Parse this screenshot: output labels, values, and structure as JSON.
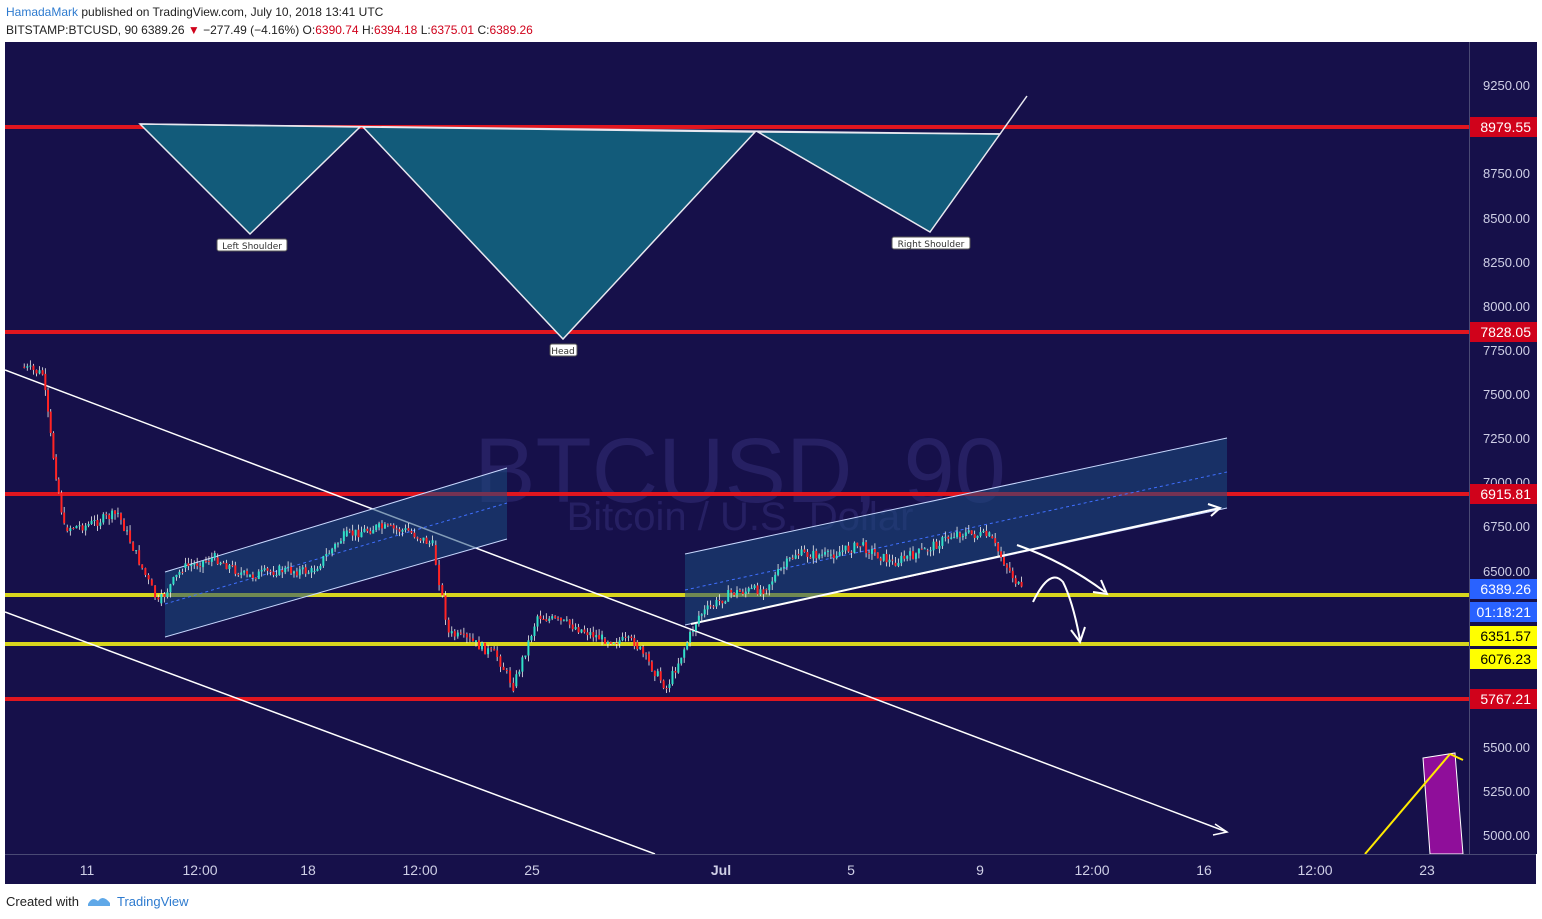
{
  "header": {
    "author": "HamadaMark",
    "published_text": " published on TradingView.com, July 10, 2018 13:41 UTC",
    "symbol_interval": "BITSTAMP:BTCUSD, 90",
    "last_price": "6389.26",
    "change": "−277.49 (−4.16%)",
    "open_label": "O:",
    "open": "6390.74",
    "high_label": "H:",
    "high": "6394.18",
    "low_label": "L:",
    "low": "6375.01",
    "close_label": "C:",
    "close": "6389.26"
  },
  "watermark": {
    "symbol": "BTCUSD, 90",
    "description": "Bitcoin / U.S. Dollar"
  },
  "price_axis": {
    "ticks": [
      "9250.00",
      "8750.00",
      "8500.00",
      "8250.00",
      "8000.00",
      "7750.00",
      "7500.00",
      "7250.00",
      "7000.00",
      "6750.00",
      "6500.00",
      "5500.00",
      "5250.00",
      "5000.00"
    ],
    "tags": [
      {
        "text": "8979.55",
        "bg": "#d0021b",
        "fg": "#ffffff"
      },
      {
        "text": "7828.05",
        "bg": "#d0021b",
        "fg": "#ffffff"
      },
      {
        "text": "6915.81",
        "bg": "#d0021b",
        "fg": "#ffffff"
      },
      {
        "text": "6389.26",
        "bg": "#2962ff",
        "fg": "#ffffff"
      },
      {
        "text": "01:18:21",
        "bg": "#2962ff",
        "fg": "#ffffff"
      },
      {
        "text": "6351.57",
        "bg": "#ffff00",
        "fg": "#000000"
      },
      {
        "text": "6076.23",
        "bg": "#ffff00",
        "fg": "#000000"
      },
      {
        "text": "5767.21",
        "bg": "#d0021b",
        "fg": "#ffffff"
      }
    ]
  },
  "time_axis": {
    "labels": [
      {
        "text": "11",
        "bold": false
      },
      {
        "text": "12:00",
        "bold": false
      },
      {
        "text": "18",
        "bold": false
      },
      {
        "text": "12:00",
        "bold": false
      },
      {
        "text": "25",
        "bold": false
      },
      {
        "text": "Jul",
        "bold": true
      },
      {
        "text": "5",
        "bold": false
      },
      {
        "text": "9",
        "bold": false
      },
      {
        "text": "12:00",
        "bold": false
      },
      {
        "text": "16",
        "bold": false
      },
      {
        "text": "12:00",
        "bold": false
      },
      {
        "text": "23",
        "bold": false
      }
    ]
  },
  "pattern": {
    "left_shoulder": "Left Shoulder",
    "head": "Head",
    "right_shoulder": "Right Shoulder"
  },
  "chart_data": {
    "type": "candlestick",
    "symbol": "BITSTAMP:BTCUSD",
    "interval": "90",
    "x_range": [
      "2018-06-09",
      "2018-07-23"
    ],
    "ylim": [
      4900,
      9500
    ],
    "horizontal_levels": [
      {
        "value": 8979.55,
        "color": "#d0021b"
      },
      {
        "value": 7828.05,
        "color": "#d0021b"
      },
      {
        "value": 6915.81,
        "color": "#d0021b"
      },
      {
        "value": 6351.57,
        "color": "#ffff00"
      },
      {
        "value": 6076.23,
        "color": "#ffff00"
      },
      {
        "value": 5767.21,
        "color": "#d0021b"
      }
    ],
    "close_path": [
      [
        "2018-06-09",
        7660
      ],
      [
        "2018-06-10",
        7620
      ],
      [
        "2018-06-10",
        7150
      ],
      [
        "2018-06-10",
        6750
      ],
      [
        "2018-06-11",
        6760
      ],
      [
        "2018-06-12",
        6830
      ],
      [
        "2018-06-13",
        6520
      ],
      [
        "2018-06-13",
        6320
      ],
      [
        "2018-06-14",
        6520
      ],
      [
        "2018-06-15",
        6580
      ],
      [
        "2018-06-16",
        6470
      ],
      [
        "2018-06-17",
        6510
      ],
      [
        "2018-06-18",
        6500
      ],
      [
        "2018-06-19",
        6700
      ],
      [
        "2018-06-20",
        6750
      ],
      [
        "2018-06-21",
        6730
      ],
      [
        "2018-06-22",
        6650
      ],
      [
        "2018-06-22",
        6150
      ],
      [
        "2018-06-23",
        6100
      ],
      [
        "2018-06-24",
        6020
      ],
      [
        "2018-06-24",
        5850
      ],
      [
        "2018-06-25",
        6250
      ],
      [
        "2018-06-26",
        6200
      ],
      [
        "2018-06-27",
        6120
      ],
      [
        "2018-06-28",
        6100
      ],
      [
        "2018-06-29",
        5840
      ],
      [
        "2018-06-30",
        6250
      ],
      [
        "2018-07-01",
        6380
      ],
      [
        "2018-07-02",
        6400
      ],
      [
        "2018-07-03",
        6600
      ],
      [
        "2018-07-04",
        6590
      ],
      [
        "2018-07-05",
        6650
      ],
      [
        "2018-07-06",
        6550
      ],
      [
        "2018-07-07",
        6620
      ],
      [
        "2018-07-08",
        6720
      ],
      [
        "2018-07-09",
        6700
      ],
      [
        "2018-07-10",
        6389.26
      ]
    ]
  },
  "footer": {
    "created_with": "Created with",
    "brand": "TradingView"
  }
}
